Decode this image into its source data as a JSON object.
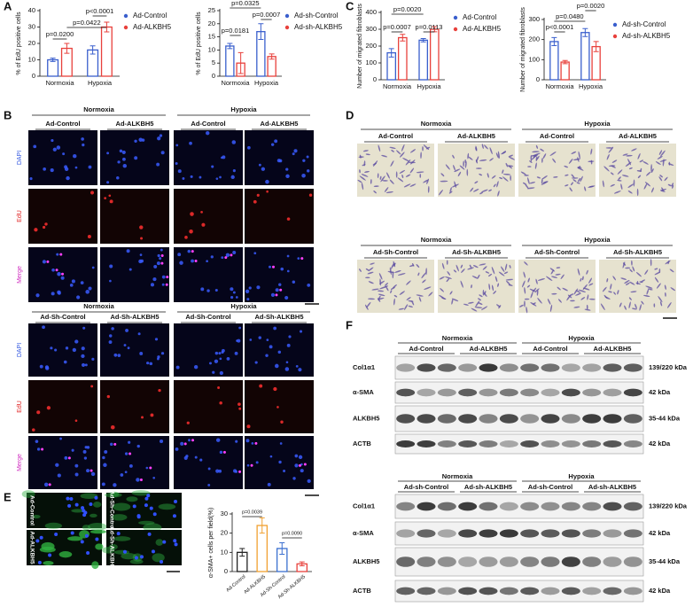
{
  "chart_data": [
    {
      "type": "bar",
      "y_label": "% of EdU positive cells",
      "categories": [
        "Normoxia",
        "Hypoxia"
      ],
      "series": [
        {
          "name": "Ad-Control",
          "color": "#3a5fcd",
          "values": [
            10,
            16
          ],
          "errors": [
            1,
            2.5
          ]
        },
        {
          "name": "Ad-ALKBH5",
          "color": "#e8413c",
          "values": [
            17,
            30
          ],
          "errors": [
            3,
            3
          ]
        }
      ],
      "ylim": [
        0,
        40
      ],
      "yticks": [
        0,
        10,
        20,
        30,
        40
      ],
      "annotations": [
        "p=0.0200",
        "p=0.0422",
        "p<0.0001"
      ]
    },
    {
      "type": "bar",
      "y_label": "% of EdU positive cells",
      "categories": [
        "Normoxia",
        "Hypoxia"
      ],
      "series": [
        {
          "name": "Ad-sh-Control",
          "color": "#3a5fcd",
          "values": [
            11.5,
            17
          ],
          "errors": [
            1,
            3
          ]
        },
        {
          "name": "Ad-sh-ALKBH5",
          "color": "#e8413c",
          "values": [
            5,
            7.5
          ],
          "errors": [
            4,
            1
          ]
        }
      ],
      "ylim": [
        0,
        25
      ],
      "yticks": [
        0,
        5,
        10,
        15,
        20,
        25
      ],
      "annotations": [
        "p=0.0181",
        "p=0.0007",
        "p=0.0325"
      ]
    },
    {
      "type": "bar",
      "y_label": "Number of migrated fibroblasts",
      "categories": [
        "Normoxia",
        "Hypoxia"
      ],
      "series": [
        {
          "name": "Ad-Control",
          "color": "#3a5fcd",
          "values": [
            160,
            235
          ],
          "errors": [
            25,
            10
          ]
        },
        {
          "name": "Ad-ALKBH5",
          "color": "#e8413c",
          "values": [
            250,
            300
          ],
          "errors": [
            20,
            15
          ]
        }
      ],
      "ylim": [
        0,
        400
      ],
      "yticks": [
        0,
        100,
        200,
        300,
        400
      ],
      "annotations": [
        "p=0.0007",
        "p=0.0113",
        "p=0.0020"
      ]
    },
    {
      "type": "bar",
      "y_label": "Number of migrated fibroblasts",
      "categories": [
        "Normoxia",
        "Hypoxia"
      ],
      "series": [
        {
          "name": "Ad-sh-Control",
          "color": "#3a5fcd",
          "values": [
            190,
            235
          ],
          "errors": [
            20,
            20
          ]
        },
        {
          "name": "Ad-sh-ALKBH5",
          "color": "#e8413c",
          "values": [
            88,
            165
          ],
          "errors": [
            8,
            25
          ]
        }
      ],
      "ylim": [
        0,
        300
      ],
      "yticks": [
        0,
        100,
        200,
        300
      ],
      "annotations": [
        "p<0.0001",
        "p=0.0480",
        "p=0.0020"
      ]
    },
    {
      "type": "bar",
      "y_label": "α-SMA+ cells per field(%)",
      "categories": [
        "Ad-Control",
        "Ad-ALKBH5",
        "Ad-Sh-Control",
        "Ad-Sh-ALKBH5"
      ],
      "values": [
        10,
        24,
        12,
        4
      ],
      "errors": [
        2,
        4,
        3,
        1
      ],
      "colors": [
        "#222222",
        "#f0a030",
        "#3a6fd0",
        "#e8413c"
      ],
      "ylim": [
        0,
        30
      ],
      "yticks": [
        0,
        10,
        20,
        30
      ],
      "annotations": [
        "p=0.0039",
        "p=0.0090"
      ]
    }
  ],
  "panels": {
    "letters": [
      "A",
      "B",
      "C",
      "D",
      "E",
      "F"
    ],
    "b": {
      "rows": [
        "DAPI",
        "EdU",
        "Merge"
      ],
      "top": {
        "conditions": [
          "Normoxia",
          "Hypoxia"
        ],
        "groups": [
          "Ad-Control",
          "Ad-ALKBH5",
          "Ad-Control",
          "Ad-ALKBH5"
        ]
      },
      "bottom": {
        "conditions": [
          "Normoxia",
          "Hypoxia"
        ],
        "groups": [
          "Ad-Sh-Control",
          "Ad-Sh-ALKBH5",
          "Ad-Sh-Control",
          "Ad-Sh-ALKBH5"
        ]
      }
    },
    "d": {
      "top": {
        "conditions": [
          "Normoxia",
          "Hypoxia"
        ],
        "groups": [
          "Ad-Control",
          "Ad-ALKBH5",
          "Ad-Control",
          "Ad-ALKBH5"
        ]
      },
      "bottom": {
        "conditions": [
          "Normoxia",
          "Hypoxia"
        ],
        "groups": [
          "Ad-Sh-Control",
          "Ad-Sh-ALKBH5",
          "Ad-Sh-Control",
          "Ad-Sh-ALKBH5"
        ]
      }
    },
    "e": {
      "image_labels": [
        "Ad-Control",
        "Ad-Sh-Control",
        "Ad-ALKBH5",
        "Ad-Sh-ALKBH5"
      ]
    },
    "f": {
      "top": {
        "conditions": [
          "Normoxia",
          "Hypoxia"
        ],
        "groups": [
          "Ad-Control",
          "Ad-ALKBH5",
          "Ad-Control",
          "Ad-ALKBH5"
        ],
        "rows": [
          "Col1α1",
          "α-SMA",
          "ALKBH5",
          "ACTB"
        ],
        "sizes": [
          "139/220 kDa",
          "42 kDa",
          "35-44 kDa",
          "42 kDa"
        ]
      },
      "bottom": {
        "conditions": [
          "Normoxia",
          "Hypoxia"
        ],
        "groups": [
          "Ad-sh-Control",
          "Ad-sh-ALKBH5",
          "Ad-sh-Control",
          "Ad-sh-ALKBH5"
        ],
        "rows": [
          "Col1α1",
          "α-SMA",
          "ALKBH5",
          "ACTB"
        ],
        "sizes": [
          "139/220 kDa",
          "42 kDa",
          "35-44 kDa",
          "42 kDa"
        ]
      }
    }
  }
}
